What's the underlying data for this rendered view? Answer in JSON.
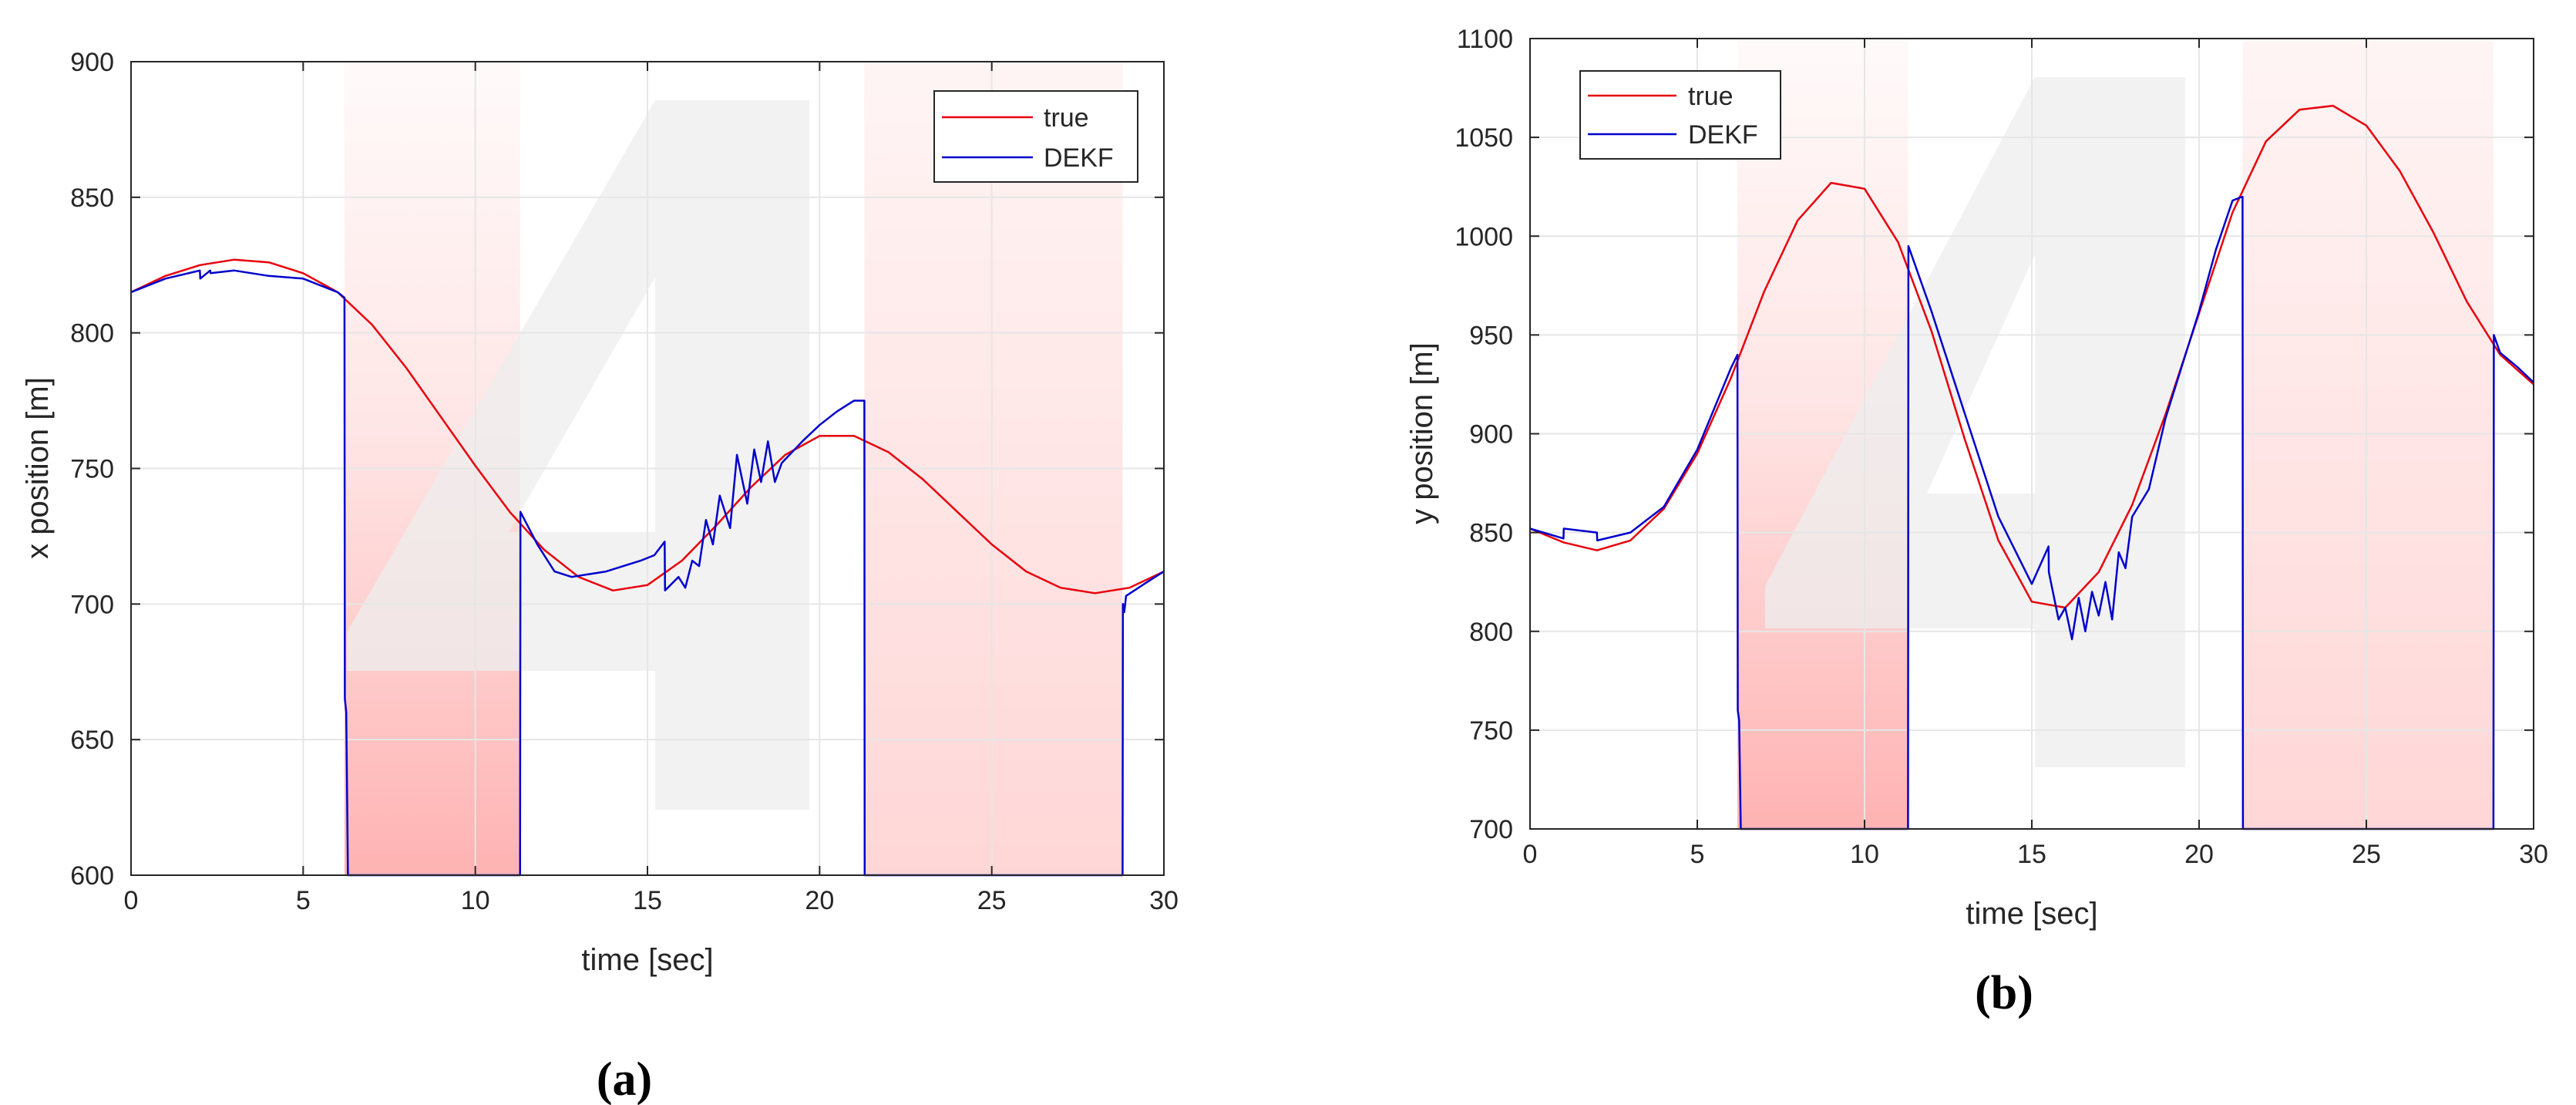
{
  "chart_data": [
    {
      "type": "line",
      "panel_label": "(a)",
      "title": "",
      "xlabel": "time [sec]",
      "ylabel": "x position [m]",
      "xlim": [
        0,
        30
      ],
      "ylim": [
        600,
        900
      ],
      "xticks": [
        0,
        5,
        10,
        15,
        20,
        25,
        30
      ],
      "yticks": [
        600,
        650,
        700,
        750,
        800,
        850,
        900
      ],
      "xtick_labels": [
        "0",
        "5",
        "10",
        "15",
        "20",
        "25",
        "30"
      ],
      "ytick_labels": [
        "600",
        "650",
        "700",
        "750",
        "800",
        "850",
        "900"
      ],
      "grid": true,
      "legend_position": "top-right",
      "shaded_intervals": [
        [
          6.2,
          11.3
        ],
        [
          21.3,
          28.8
        ]
      ],
      "series": [
        {
          "name": "true",
          "color": "#e8000b",
          "x": [
            0,
            1,
            2,
            3,
            4,
            5,
            6,
            7,
            8,
            9,
            10,
            11,
            12,
            13,
            14,
            15,
            16,
            17,
            18,
            19,
            20,
            21,
            22,
            23,
            24,
            25,
            26,
            27,
            28,
            29,
            30
          ],
          "y": [
            815,
            821,
            825,
            827,
            826,
            822,
            815,
            803,
            787,
            769,
            751,
            734,
            720,
            710,
            705,
            707,
            716,
            729,
            743,
            755,
            762,
            762,
            756,
            746,
            734,
            722,
            712,
            706,
            704,
            706,
            712
          ]
        },
        {
          "name": "DEKF",
          "color": "#0000cc",
          "x": [
            0,
            1,
            2,
            2.01,
            2.3,
            2.31,
            3,
            4,
            5,
            6,
            6.2,
            6.21,
            6.25,
            6.3,
            11.3,
            11.31,
            11.8,
            12.3,
            12.8,
            13.3,
            13.8,
            14.3,
            14.8,
            15.2,
            15.5,
            15.51,
            15.9,
            16.1,
            16.3,
            16.5,
            16.7,
            16.9,
            17.1,
            17.4,
            17.6,
            17.9,
            18.1,
            18.3,
            18.5,
            18.7,
            18.9,
            19.5,
            20,
            20.5,
            21,
            21.3,
            21.31,
            28.8,
            28.81,
            28.85,
            28.9,
            29.5,
            30
          ],
          "y": [
            815,
            820,
            823,
            820,
            823,
            822,
            823,
            821,
            820,
            815,
            813,
            665,
            660,
            600,
            600,
            734,
            722,
            712,
            710,
            711,
            712,
            714,
            716,
            718,
            723,
            705,
            710,
            706,
            716,
            714,
            731,
            722,
            740,
            728,
            755,
            737,
            757,
            745,
            760,
            745,
            752,
            760,
            766,
            771,
            775,
            775,
            600,
            600,
            700,
            697,
            703,
            708,
            712
          ]
        }
      ]
    },
    {
      "type": "line",
      "panel_label": "(b)",
      "title": "",
      "xlabel": "time [sec]",
      "ylabel": "y position [m]",
      "xlim": [
        0,
        30
      ],
      "ylim": [
        700,
        1100
      ],
      "xticks": [
        0,
        5,
        10,
        15,
        20,
        25,
        30
      ],
      "yticks": [
        700,
        750,
        800,
        850,
        900,
        950,
        1000,
        1050,
        1100
      ],
      "xtick_labels": [
        "0",
        "5",
        "10",
        "15",
        "20",
        "25",
        "30"
      ],
      "ytick_labels": [
        "700",
        "750",
        "800",
        "850",
        "900",
        "950",
        "1000",
        "1050",
        "1100"
      ],
      "grid": true,
      "legend_position": "top-left",
      "shaded_intervals": [
        [
          6.2,
          11.3
        ],
        [
          21.3,
          28.8
        ]
      ],
      "series": [
        {
          "name": "true",
          "color": "#e8000b",
          "x": [
            0,
            1,
            2,
            3,
            4,
            5,
            6,
            7,
            8,
            9,
            10,
            11,
            12,
            13,
            14,
            15,
            16,
            17,
            18,
            19,
            20,
            21,
            22,
            23,
            24,
            25,
            26,
            27,
            28,
            29,
            30
          ],
          "y": [
            852,
            845,
            841,
            846,
            862,
            890,
            928,
            972,
            1008,
            1027,
            1024,
            997,
            952,
            897,
            846,
            815,
            812,
            830,
            864,
            910,
            961,
            1012,
            1048,
            1064,
            1066,
            1056,
            1033,
            1002,
            967,
            940,
            925
          ]
        },
        {
          "name": "DEKF",
          "color": "#0000cc",
          "x": [
            0,
            1,
            1.01,
            2,
            2.01,
            3,
            4,
            5,
            6,
            6.2,
            6.21,
            6.25,
            6.3,
            11.3,
            11.31,
            12,
            13,
            14,
            15,
            15.5,
            15.51,
            15.8,
            16,
            16.2,
            16.4,
            16.6,
            16.8,
            17,
            17.2,
            17.4,
            17.6,
            17.8,
            18,
            18.5,
            19,
            20,
            20.5,
            21,
            21.3,
            21.31,
            28.8,
            28.81,
            29,
            29.5,
            30
          ],
          "y": [
            852,
            847,
            852,
            850,
            846,
            850,
            863,
            892,
            933,
            940,
            760,
            755,
            700,
            700,
            995,
            962,
            910,
            858,
            824,
            843,
            830,
            806,
            812,
            796,
            817,
            800,
            820,
            808,
            825,
            806,
            840,
            832,
            858,
            872,
            908,
            962,
            993,
            1018,
            1020,
            700,
            700,
            950,
            941,
            934,
            926
          ]
        }
      ]
    }
  ]
}
